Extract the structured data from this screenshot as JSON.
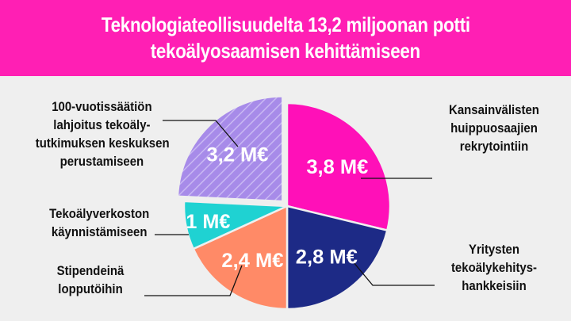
{
  "header": {
    "title_line1": "Teknologiateollisuudelta 13,2 miljoonan potti",
    "title_line2": "tekoälyosaamisen kehittämiseen"
  },
  "colors": {
    "header_bg": "#ff1fb4",
    "background": "#efefef",
    "slice_1": "#ff10b8",
    "slice_2": "#1d2a86",
    "slice_3": "#ff8a67",
    "slice_4": "#1fd2d2",
    "slice_5": "#a78be9"
  },
  "chart_data": {
    "type": "pie",
    "slices": [
      {
        "value": 3.8,
        "label": "3,8 M€",
        "description": [
          "Kansainvälisten",
          "huippuosaajien",
          "rekrytointiin"
        ],
        "color": "#ff10b8",
        "pattern": "solid"
      },
      {
        "value": 2.8,
        "label": "2,8 M€",
        "description": [
          "Yritysten",
          "tekoälykehitys-",
          "hankkeisiin"
        ],
        "color": "#1d2a86",
        "pattern": "solid"
      },
      {
        "value": 2.4,
        "label": "2,4 M€",
        "description": [
          "Stipendeinä",
          "lopputöihin"
        ],
        "color": "#ff8a67",
        "pattern": "solid"
      },
      {
        "value": 1.0,
        "label": "1 M€",
        "description": [
          "Tekoälyverkoston",
          "käynnistämiseen"
        ],
        "color": "#1fd2d2",
        "pattern": "solid"
      },
      {
        "value": 3.2,
        "label": "3,2 M€",
        "description": [
          "100-vuotissäätiön",
          "lahjoitus tekoäly-",
          "tutkimuksen keskuksen",
          "perustamiseen"
        ],
        "color": "#a78be9",
        "pattern": "hatched",
        "exploded": true
      }
    ],
    "total": 13.2
  }
}
